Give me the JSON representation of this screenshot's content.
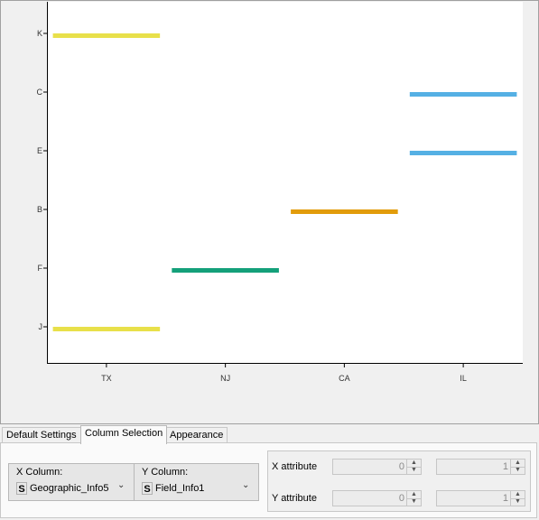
{
  "chart_data": {
    "type": "scatter",
    "x_categories": [
      "TX",
      "NJ",
      "CA",
      "IL"
    ],
    "y_categories": [
      "K",
      "C",
      "E",
      "B",
      "F",
      "J"
    ],
    "points": [
      {
        "x": "TX",
        "y": "K",
        "color": "#e8e04a"
      },
      {
        "x": "TX",
        "y": "J",
        "color": "#e8e04a"
      },
      {
        "x": "NJ",
        "y": "F",
        "color": "#14a07a"
      },
      {
        "x": "CA",
        "y": "B",
        "color": "#e29c0a"
      },
      {
        "x": "IL",
        "y": "C",
        "color": "#55b0e4"
      },
      {
        "x": "IL",
        "y": "E",
        "color": "#55b0e4"
      }
    ],
    "xlabel": "",
    "ylabel": "",
    "grid": false
  },
  "tabs": [
    {
      "label": "Default Settings"
    },
    {
      "label": "Column Selection"
    },
    {
      "label": "Appearance"
    }
  ],
  "x_column": {
    "label": "X Column:",
    "type_icon": "S",
    "value": "Geographic_Info5"
  },
  "y_column": {
    "label": "Y Column:",
    "type_icon": "S",
    "value": "Field_Info1"
  },
  "x_attribute": {
    "label": "X attribute",
    "value1": "0",
    "value2": "1"
  },
  "y_attribute": {
    "label": "Y attribute",
    "value1": "0",
    "value2": "1"
  }
}
